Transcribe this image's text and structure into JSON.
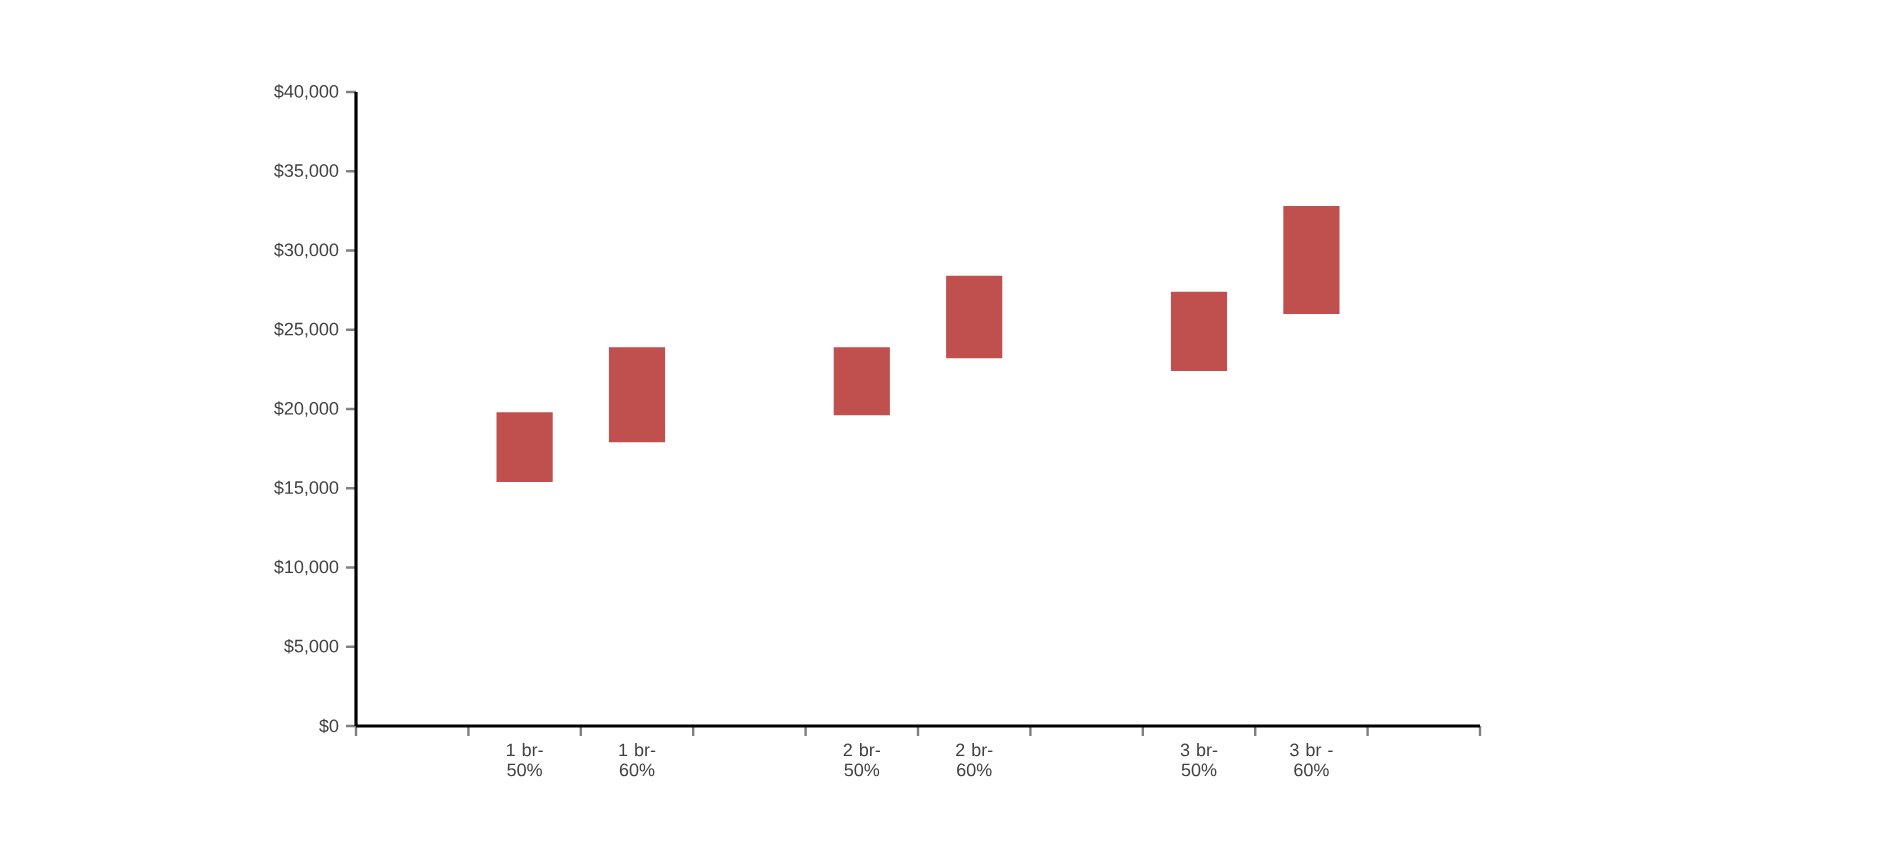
{
  "chart_data": {
    "type": "bar",
    "categories": [
      null,
      "1 br- 50%",
      "1 br- 60%",
      null,
      "2 br- 50%",
      "2 br- 60%",
      null,
      "3 br- 50%",
      "3 br - 60%",
      null
    ],
    "base": [
      null,
      15400,
      17900,
      null,
      19600,
      23200,
      null,
      22400,
      26000,
      null
    ],
    "values": [
      null,
      4400,
      6000,
      null,
      4300,
      5200,
      null,
      5000,
      6800,
      null
    ],
    "color": "#c0504d",
    "ylim": [
      0,
      40000
    ],
    "yticks": [
      {
        "value": 0,
        "label": "$0"
      },
      {
        "value": 5000,
        "label": "$5,000"
      },
      {
        "value": 10000,
        "label": "$10,000"
      },
      {
        "value": 15000,
        "label": "$15,000"
      },
      {
        "value": 20000,
        "label": "$20,000"
      },
      {
        "value": 25000,
        "label": "$25,000"
      },
      {
        "value": 30000,
        "label": "$30,000"
      },
      {
        "value": 35000,
        "label": "$35,000"
      },
      {
        "value": 40000,
        "label": "$40,000"
      }
    ]
  }
}
